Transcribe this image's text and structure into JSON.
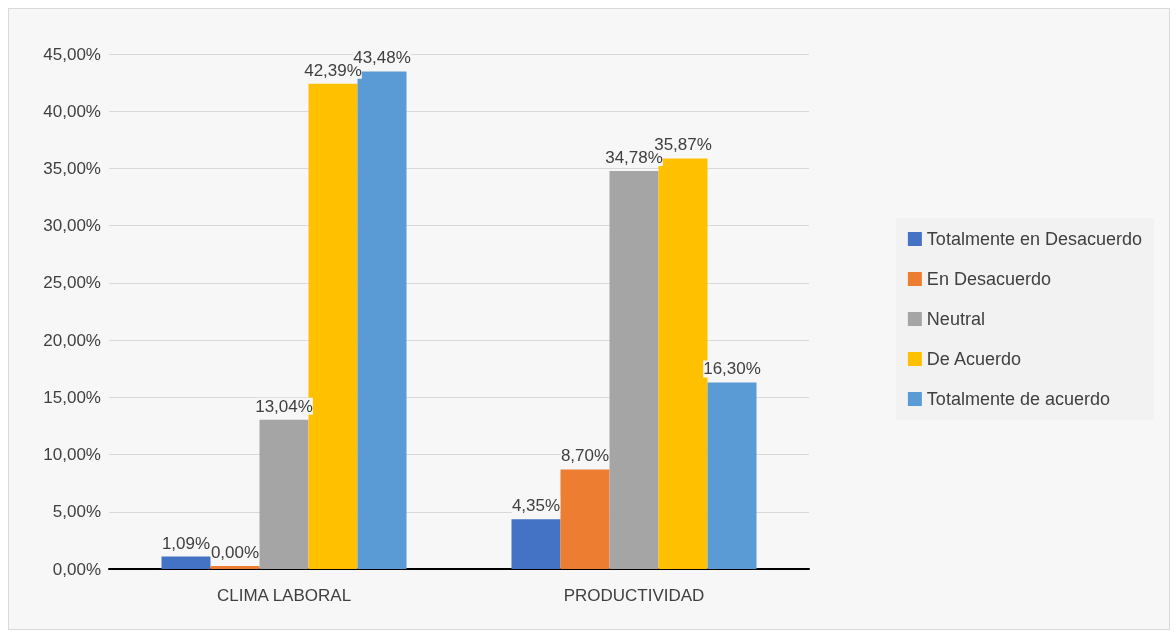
{
  "chart_data": {
    "type": "bar",
    "categories": [
      "CLIMA LABORAL",
      "PRODUCTIVIDAD"
    ],
    "series": [
      {
        "name": "Totalmente en Desacuerdo",
        "color": "#4472c4",
        "values": [
          1.09,
          4.35
        ],
        "value_labels": [
          "1,09%",
          "4,35%"
        ]
      },
      {
        "name": "En Desacuerdo",
        "color": "#ed7d31",
        "values": [
          0,
          8.7
        ],
        "value_labels": [
          "0,00%",
          "8,70%"
        ]
      },
      {
        "name": "Neutral",
        "color": "#a5a5a5",
        "values": [
          13.04,
          34.78
        ],
        "value_labels": [
          "13,04%",
          "34,78%"
        ]
      },
      {
        "name": "De Acuerdo",
        "color": "#ffc000",
        "values": [
          42.39,
          35.87
        ],
        "value_labels": [
          "42,39%",
          "35,87%"
        ]
      },
      {
        "name": "Totalmente de acuerdo",
        "color": "#5b9bd5",
        "values": [
          43.48,
          16.3
        ],
        "value_labels": [
          "43,48%",
          "16,30%"
        ]
      }
    ],
    "ylim": [
      0,
      45
    ],
    "yticks": [
      {
        "value": 0,
        "label": "0,00%"
      },
      {
        "value": 5,
        "label": "5,00%"
      },
      {
        "value": 10,
        "label": "10,00%"
      },
      {
        "value": 15,
        "label": "15,00%"
      },
      {
        "value": 20,
        "label": "20,00%"
      },
      {
        "value": 25,
        "label": "25,00%"
      },
      {
        "value": 30,
        "label": "30,00%"
      },
      {
        "value": 35,
        "label": "35,00%"
      },
      {
        "value": 40,
        "label": "40,00%"
      },
      {
        "value": 45,
        "label": "45,00%"
      }
    ],
    "grid": "y",
    "legend": "right"
  }
}
